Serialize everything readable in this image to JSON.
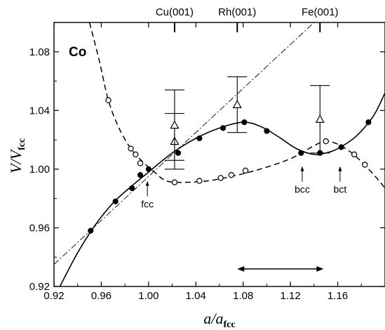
{
  "chart_data": {
    "type": "line",
    "title": "",
    "panel_label": "Co",
    "xlabel": {
      "main": "a/a",
      "sub": "fcc"
    },
    "ylabel": {
      "main": "V/V",
      "sub": "fcc"
    },
    "xlim": [
      0.92,
      1.2
    ],
    "ylim": [
      0.92,
      1.1
    ],
    "x_ticks": [
      0.92,
      0.96,
      1.0,
      1.04,
      1.08,
      1.12,
      1.16
    ],
    "x_tick_labels": [
      "0.92",
      "0.96",
      "1.00",
      "1.04",
      "1.08",
      "1.12",
      "1.16"
    ],
    "y_ticks": [
      0.92,
      0.96,
      1.0,
      1.04,
      1.08
    ],
    "y_tick_labels": [
      "0.92",
      "0.96",
      "1.00",
      "1.04",
      "1.08"
    ],
    "top_substrates": [
      {
        "label": "Cu(001)",
        "x": 1.022
      },
      {
        "label": "Rh(001)",
        "x": 1.075
      },
      {
        "label": "Fe(001)",
        "x": 1.145
      }
    ],
    "series": [
      {
        "style": "solid",
        "marker": "filled-circle",
        "points": [
          [
            0.951,
            0.958
          ],
          [
            0.972,
            0.978
          ],
          [
            0.986,
            0.987
          ],
          [
            0.993,
            0.996
          ],
          [
            1.0,
            1.0
          ],
          [
            1.025,
            1.011
          ],
          [
            1.043,
            1.021
          ],
          [
            1.063,
            1.028
          ],
          [
            1.081,
            1.032
          ],
          [
            1.1,
            1.026
          ],
          [
            1.129,
            1.011
          ],
          [
            1.145,
            1.011
          ],
          [
            1.163,
            1.015
          ],
          [
            1.186,
            1.032
          ]
        ],
        "curve": [
          [
            0.925,
            0.92
          ],
          [
            0.94,
            0.943
          ],
          [
            0.955,
            0.962
          ],
          [
            0.97,
            0.977
          ],
          [
            0.985,
            0.988
          ],
          [
            1.0,
            0.998
          ],
          [
            1.02,
            1.011
          ],
          [
            1.04,
            1.021
          ],
          [
            1.06,
            1.028
          ],
          [
            1.08,
            1.032
          ],
          [
            1.095,
            1.029
          ],
          [
            1.11,
            1.022
          ],
          [
            1.125,
            1.014
          ],
          [
            1.14,
            1.01
          ],
          [
            1.15,
            1.011
          ],
          [
            1.16,
            1.014
          ],
          [
            1.175,
            1.022
          ],
          [
            1.19,
            1.036
          ],
          [
            1.2,
            1.052
          ]
        ]
      },
      {
        "style": "dashed",
        "marker": "open-circle",
        "points": [
          [
            0.966,
            1.047
          ],
          [
            0.985,
            1.014
          ],
          [
            0.989,
            1.01
          ],
          [
            0.993,
            1.004
          ],
          [
            1.022,
            0.991
          ],
          [
            1.043,
            0.992
          ],
          [
            1.061,
            0.994
          ],
          [
            1.07,
            0.996
          ],
          [
            1.082,
            0.999
          ],
          [
            1.15,
            1.019
          ],
          [
            1.174,
            1.01
          ],
          [
            1.183,
            1.003
          ]
        ],
        "curve": [
          [
            0.95,
            1.1
          ],
          [
            0.958,
            1.075
          ],
          [
            0.966,
            1.047
          ],
          [
            0.975,
            1.028
          ],
          [
            0.985,
            1.014
          ],
          [
            0.995,
            1.005
          ],
          [
            1.005,
            0.998
          ],
          [
            1.015,
            0.992
          ],
          [
            1.03,
            0.991
          ],
          [
            1.05,
            0.992
          ],
          [
            1.07,
            0.995
          ],
          [
            1.09,
            0.999
          ],
          [
            1.11,
            1.004
          ],
          [
            1.125,
            1.009
          ],
          [
            1.14,
            1.016
          ],
          [
            1.15,
            1.019
          ],
          [
            1.16,
            1.017
          ],
          [
            1.172,
            1.011
          ],
          [
            1.185,
            1.001
          ],
          [
            1.195,
            0.992
          ],
          [
            1.2,
            0.987
          ]
        ]
      },
      {
        "style": "dash-dot",
        "marker": "none",
        "points": [
          [
            0.92,
            0.935
          ],
          [
            1.14,
            1.1
          ]
        ]
      },
      {
        "style": "none",
        "marker": "open-triangle",
        "points": [
          {
            "x": 1.022,
            "y": 1.019,
            "err": 0.019
          },
          {
            "x": 1.022,
            "y": 1.03,
            "err": 0.024
          },
          {
            "x": 1.075,
            "y": 1.044,
            "err": 0.019
          },
          {
            "x": 1.145,
            "y": 1.034,
            "err": 0.023
          }
        ]
      }
    ],
    "annotations": [
      {
        "text": "fcc",
        "x": 0.999,
        "y": 0.992
      },
      {
        "text": "bcc",
        "x": 1.13,
        "y": 1.002
      },
      {
        "text": "bct",
        "x": 1.162,
        "y": 1.002
      }
    ],
    "range_arrow": [
      1.075,
      1.148
    ]
  }
}
